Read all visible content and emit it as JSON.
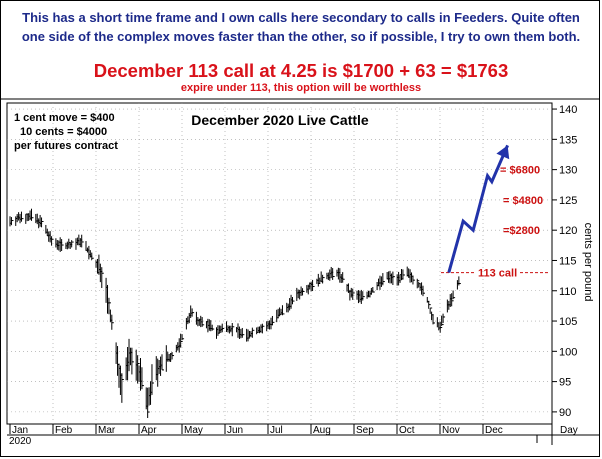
{
  "header": {
    "line1": "This has a short time frame and I own calls here secondary to calls in Feeders. Quite often",
    "line2": "one side of the complex moves faster than the other, so if possible, I try to own them both.",
    "headline": "December 113 call at 4.25 is $1700 + 63 = $1763",
    "subline": "expire under 113, this option will be worthless"
  },
  "chart_data": {
    "type": "bar",
    "subtype": "OHLC price bars",
    "title": "December 2020 Live Cattle",
    "ylabel": "cents per pound",
    "xlabel": "Day",
    "year_label": "2020",
    "ylim": [
      88,
      141
    ],
    "y_ticks": [
      90,
      95,
      100,
      105,
      110,
      115,
      120,
      125,
      130,
      135,
      140
    ],
    "months": [
      "Jan",
      "Feb",
      "Mar",
      "Apr",
      "May",
      "Jun",
      "Jul",
      "Aug",
      "Sep",
      "Oct",
      "Nov",
      "Dec"
    ],
    "notes": [
      "1 cent move = $400",
      "10 cents = $4000",
      "per futures contract"
    ],
    "strike": {
      "price": 113,
      "label": "113 call"
    },
    "profit_levels": [
      {
        "price": 130,
        "label": "= $6800"
      },
      {
        "price": 125,
        "label": "= $4800"
      },
      {
        "price": 120,
        "label": "=$2800"
      }
    ],
    "projection": [
      {
        "date": "2020-11-03",
        "price": 113
      },
      {
        "date": "2020-11-13",
        "price": 121.5
      },
      {
        "date": "2020-11-20",
        "price": 120
      },
      {
        "date": "2020-11-30",
        "price": 129
      },
      {
        "date": "2020-12-03",
        "price": 128
      },
      {
        "date": "2020-12-14",
        "price": 134
      }
    ],
    "price_path": [
      {
        "date": "2020-01-02",
        "price": 121.5
      },
      {
        "date": "2020-01-10",
        "price": 122.2
      },
      {
        "date": "2020-01-17",
        "price": 122.3
      },
      {
        "date": "2020-01-24",
        "price": 121.2
      },
      {
        "date": "2020-01-31",
        "price": 118.2
      },
      {
        "date": "2020-02-07",
        "price": 117.5
      },
      {
        "date": "2020-02-14",
        "price": 117.6
      },
      {
        "date": "2020-02-21",
        "price": 118.3
      },
      {
        "date": "2020-02-28",
        "price": 115.5
      },
      {
        "date": "2020-03-06",
        "price": 113.0
      },
      {
        "date": "2020-03-10",
        "price": 108.5
      },
      {
        "date": "2020-03-13",
        "price": 104.5
      },
      {
        "date": "2020-03-17",
        "price": 98.0
      },
      {
        "date": "2020-03-20",
        "price": 94.5
      },
      {
        "date": "2020-03-25",
        "price": 99.0
      },
      {
        "date": "2020-03-31",
        "price": 97.5
      },
      {
        "date": "2020-04-03",
        "price": 95.0
      },
      {
        "date": "2020-04-07",
        "price": 91.0
      },
      {
        "date": "2020-04-10",
        "price": 95.0
      },
      {
        "date": "2020-04-15",
        "price": 97.5
      },
      {
        "date": "2020-04-20",
        "price": 98.5
      },
      {
        "date": "2020-04-24",
        "price": 99.5
      },
      {
        "date": "2020-04-29",
        "price": 101.0
      },
      {
        "date": "2020-05-04",
        "price": 104.5
      },
      {
        "date": "2020-05-07",
        "price": 106.5
      },
      {
        "date": "2020-05-12",
        "price": 105.0
      },
      {
        "date": "2020-05-18",
        "price": 104.5
      },
      {
        "date": "2020-05-25",
        "price": 103.3
      },
      {
        "date": "2020-06-01",
        "price": 104.0
      },
      {
        "date": "2020-06-08",
        "price": 103.5
      },
      {
        "date": "2020-06-15",
        "price": 102.5
      },
      {
        "date": "2020-06-22",
        "price": 103.5
      },
      {
        "date": "2020-06-29",
        "price": 104.0
      },
      {
        "date": "2020-07-06",
        "price": 105.8
      },
      {
        "date": "2020-07-13",
        "price": 107.2
      },
      {
        "date": "2020-07-20",
        "price": 109.3
      },
      {
        "date": "2020-07-27",
        "price": 110.5
      },
      {
        "date": "2020-08-03",
        "price": 111.5
      },
      {
        "date": "2020-08-10",
        "price": 112.5
      },
      {
        "date": "2020-08-17",
        "price": 113.0
      },
      {
        "date": "2020-08-21",
        "price": 112.0
      },
      {
        "date": "2020-08-26",
        "price": 109.5
      },
      {
        "date": "2020-09-02",
        "price": 109.0
      },
      {
        "date": "2020-09-09",
        "price": 109.5
      },
      {
        "date": "2020-09-14",
        "price": 111.0
      },
      {
        "date": "2020-09-21",
        "price": 112.3
      },
      {
        "date": "2020-09-28",
        "price": 112.0
      },
      {
        "date": "2020-10-05",
        "price": 112.8
      },
      {
        "date": "2020-10-12",
        "price": 111.5
      },
      {
        "date": "2020-10-19",
        "price": 108.5
      },
      {
        "date": "2020-10-23",
        "price": 105.0
      },
      {
        "date": "2020-10-28",
        "price": 104.0
      },
      {
        "date": "2020-11-02",
        "price": 107.5
      },
      {
        "date": "2020-11-06",
        "price": 109.0
      },
      {
        "date": "2020-11-10",
        "price": 111.5
      }
    ]
  },
  "colors": {
    "headline": "#d9121a",
    "note": "#1d2a8a",
    "projection": "#2233aa",
    "levels": "#cc1111"
  }
}
